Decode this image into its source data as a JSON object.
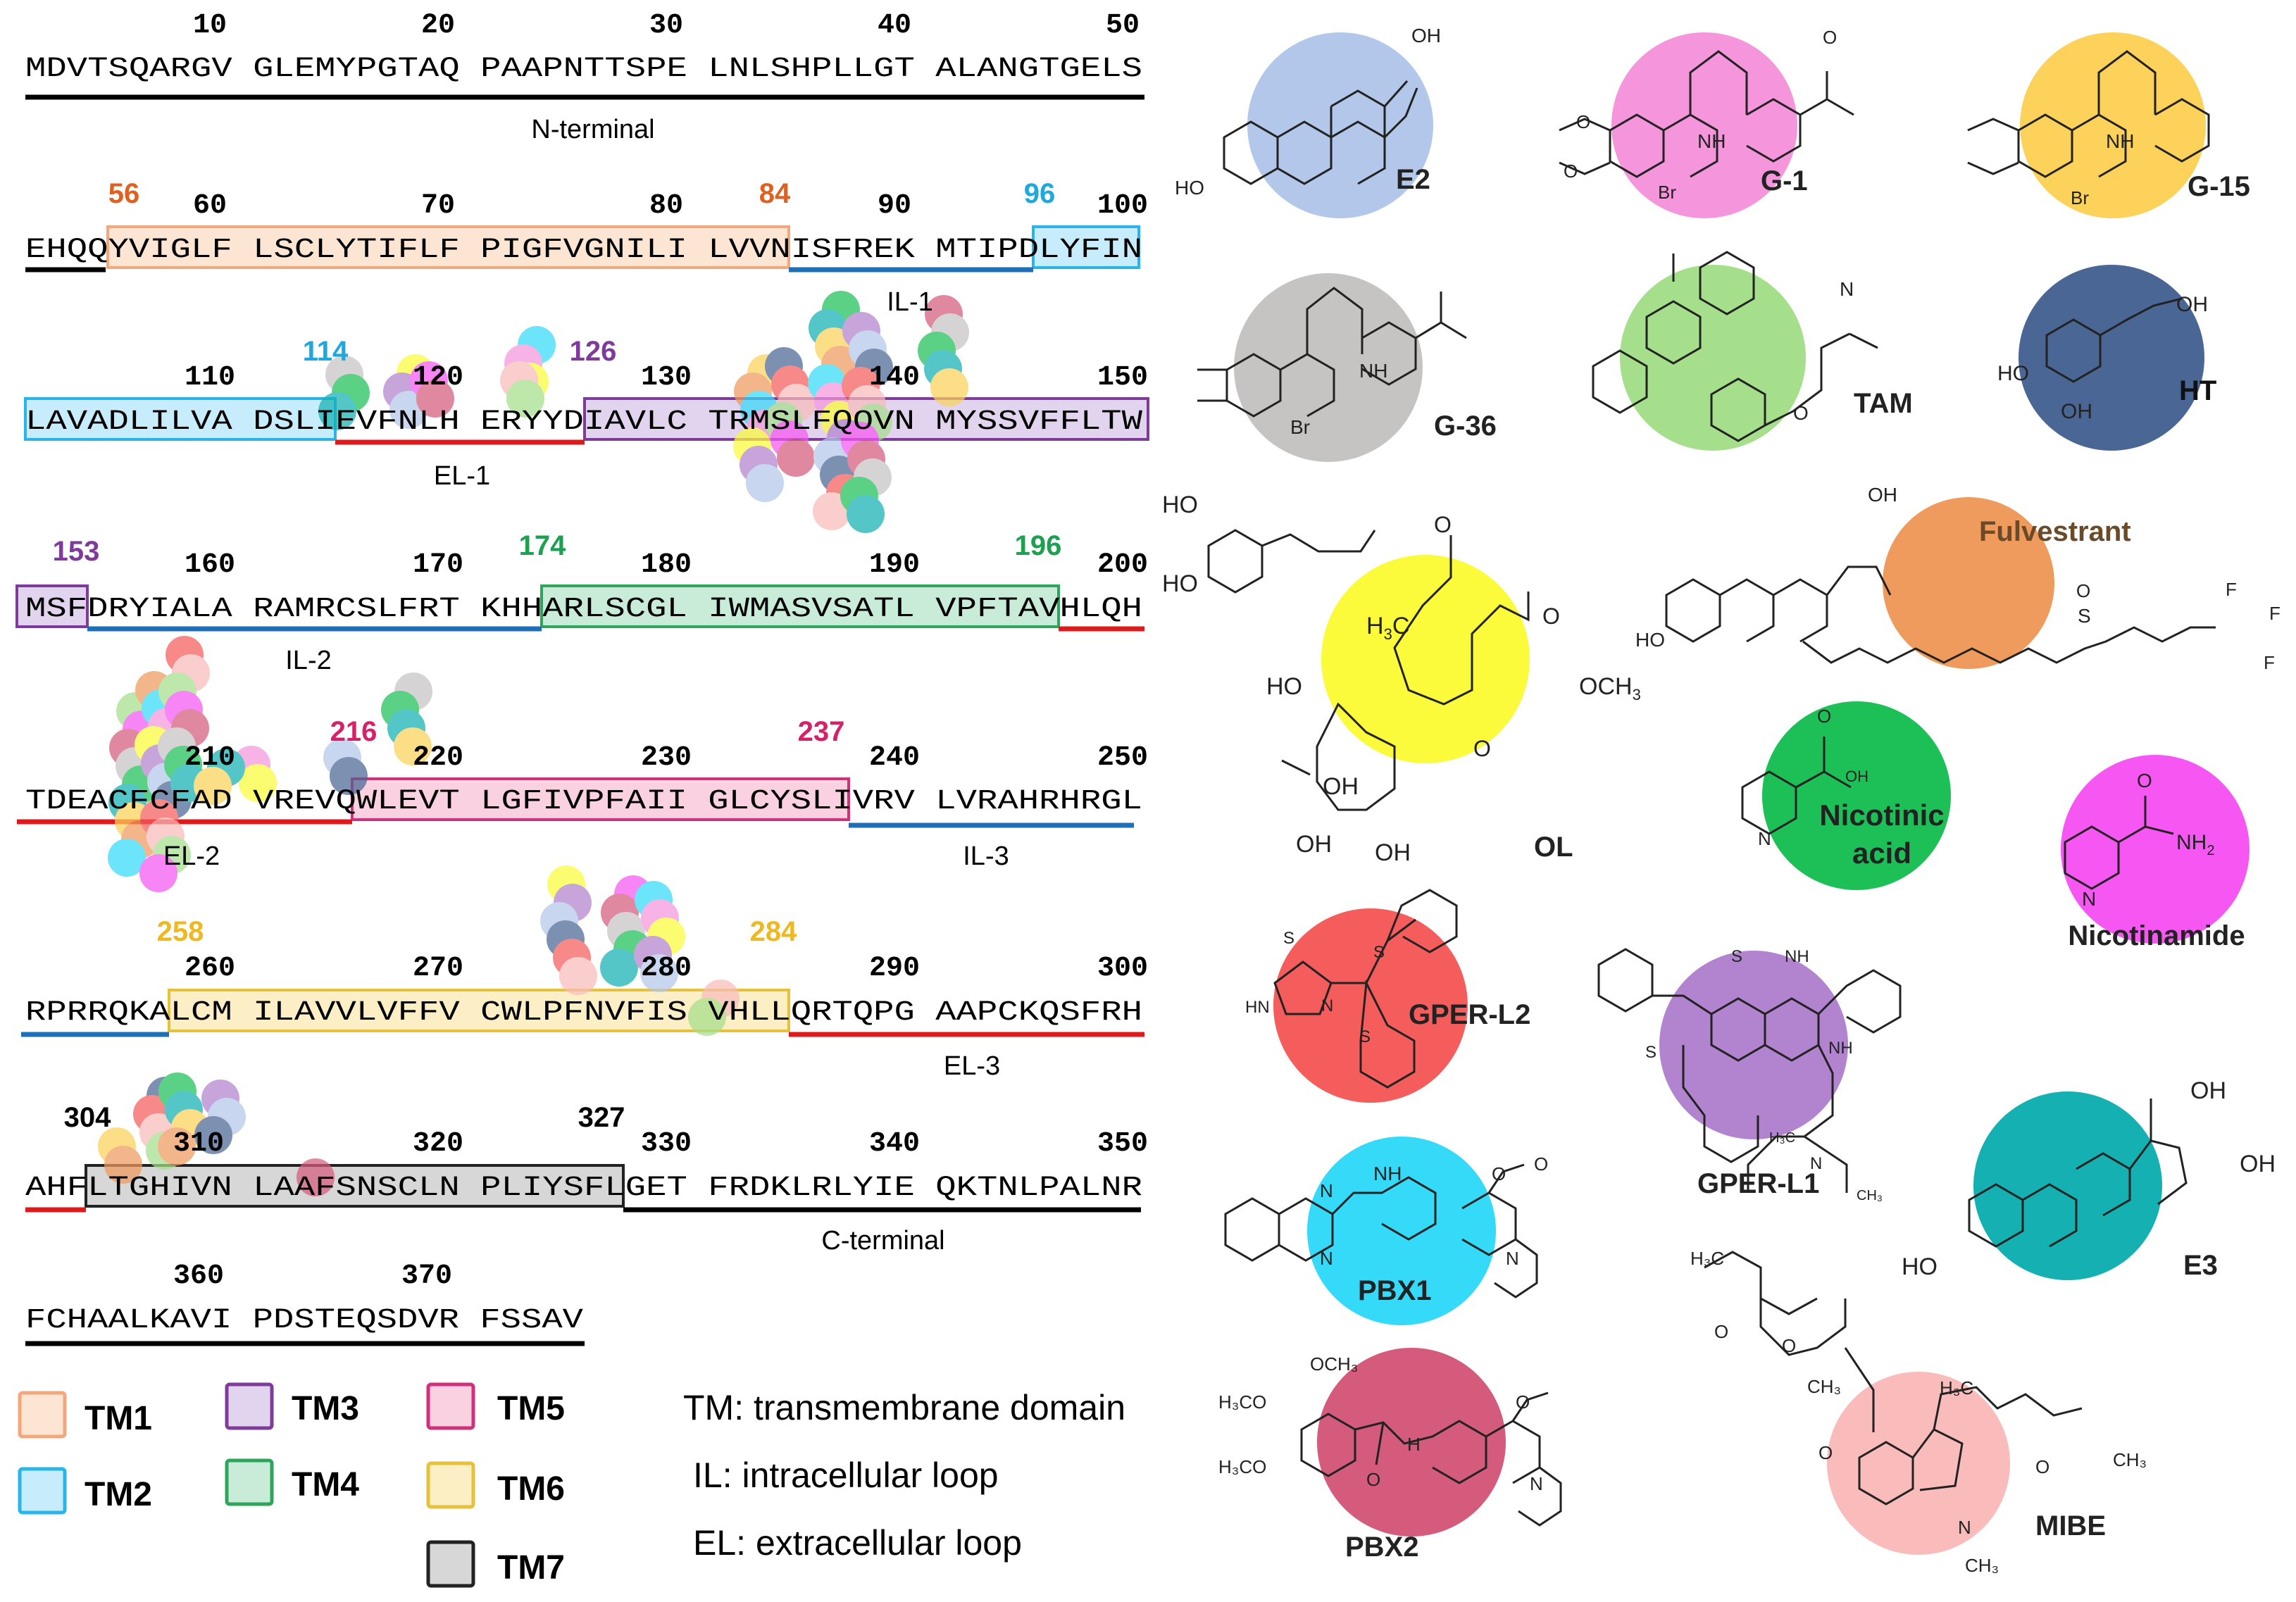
{
  "sequence_rows": [
    {
      "numbers": [
        "10",
        "20",
        "30",
        "40",
        "50"
      ],
      "text": "MDVTSQARGV GLEMYPGTAQ PAAPNTTSPE LNLSHPLLGT ALANGTGELS"
    },
    {
      "numbers": [
        "60",
        "70",
        "80",
        "90",
        "100"
      ],
      "text": "EHQQYVIGLF LSCLYTIFLF PIGFVGNILI LVVNISFREK MTIPDLYFIN"
    },
    {
      "numbers": [
        "110",
        "120",
        "130",
        "140",
        "150"
      ],
      "text": "LAVADLILVA DSLIEVFNLH ERYYDIAVLC TRMSLFQOVN MYSSVFFLTW"
    },
    {
      "numbers": [
        "160",
        "170",
        "180",
        "190",
        "200"
      ],
      "text": "MSFDRYIALA RAMRCSLFRT KHHARLSCGL IWMASVSATL VPFTAVHLQH"
    },
    {
      "numbers": [
        "210",
        "220",
        "230",
        "240",
        "250"
      ],
      "text": "TDEACFCFAD VREVQWLEVT LGFIVPFAII GLCYSLIVRV LVRAHRHRGL"
    },
    {
      "numbers": [
        "260",
        "270",
        "280",
        "290",
        "300"
      ],
      "text": "RPRRQKALCM ILAVVLVFFV CWLPFNVFIS VHLLQRTQPG AAPCKQSFRH"
    },
    {
      "numbers": [
        "320",
        "330",
        "340",
        "350"
      ],
      "text": "AHFLTGHIVN LAAFSNSCLN PLIYSFLGET FRDKLRLYIE QKTNLPALNR",
      "num_310": "310"
    },
    {
      "numbers": [
        "360",
        "370"
      ],
      "text": "FCHAALKAVI PDSTEQSDVR FSSAV"
    }
  ],
  "region_labels": {
    "n_terminal": "N-terminal",
    "il1": "IL-1",
    "el1": "EL-1",
    "il2": "IL-2",
    "el2": "EL-2",
    "il3": "IL-3",
    "el3": "EL-3",
    "c_terminal": "C-terminal"
  },
  "boundary_numbers": {
    "b56": "56",
    "b84": "84",
    "b96": "96",
    "b114": "114",
    "b126": "126",
    "b153": "153",
    "b174": "174",
    "b196": "196",
    "b216": "216",
    "b237": "237",
    "b258": "258",
    "b284": "284",
    "b304": "304",
    "b327": "327"
  },
  "legend": {
    "tm1": "TM1",
    "tm2": "TM2",
    "tm3": "TM3",
    "tm4": "TM4",
    "tm5": "TM5",
    "tm6": "TM6",
    "tm7": "TM7",
    "def_tm": "TM: transmembrane domain",
    "def_il": "IL: intracellular loop",
    "def_el": "EL: extracellular loop"
  },
  "ligands": [
    {
      "key": "E2",
      "label": "E2",
      "color": "#b3c7ea"
    },
    {
      "key": "G1",
      "label": "G-1",
      "color": "#f596dd"
    },
    {
      "key": "G15",
      "label": "G-15",
      "color": "#fcd25a"
    },
    {
      "key": "G36",
      "label": "G-36",
      "color": "#c6c3c3"
    },
    {
      "key": "TAM",
      "label": "TAM",
      "color": "#a6df8b"
    },
    {
      "key": "HT",
      "label": "HT",
      "color": "#4a6694"
    },
    {
      "key": "OL",
      "label": "OL",
      "color": "#fbfb3b"
    },
    {
      "key": "FUL",
      "label": "Fulvestrant",
      "color": "#ef9b5e"
    },
    {
      "key": "NA",
      "label": "Nicotinic acid",
      "color": "#1cc057"
    },
    {
      "key": "NAM",
      "label": "Nicotinamide",
      "color": "#f657f2"
    },
    {
      "key": "L2",
      "label": "GPER-L2",
      "color": "#f55d5d"
    },
    {
      "key": "L1",
      "label": "GPER-L1",
      "color": "#b283ce"
    },
    {
      "key": "PBX1",
      "label": "PBX1",
      "color": "#34daf8"
    },
    {
      "key": "E3",
      "label": "E3",
      "color": "#15b1b2"
    },
    {
      "key": "PBX2",
      "label": "PBX2",
      "color": "#d55b7c"
    },
    {
      "key": "MIBE",
      "label": "MIBE",
      "color": "#f9bcbb"
    }
  ],
  "atoms": {
    "oh": "OH",
    "ho": "HO",
    "h": "H",
    "nh": "NH",
    "br": "Br",
    "o": "O",
    "n": "N",
    "s": "S",
    "f": "F",
    "hn": "HN",
    "nh2": "NH",
    "two": "2",
    "h3c": "H",
    "three": "3",
    "och3": "OCH",
    "ch3": "CH",
    "oh_ring": "OH",
    "h3co": "H₃CO",
    "och3b": "OCH₃",
    "ch3b": "CH₃",
    "h3cb": "H₃C"
  },
  "colors": {
    "tm1_fill": "#fde5d4",
    "tm1_edge": "#f2a77d",
    "tm2_fill": "#c7ecfb",
    "tm2_edge": "#2ab5ea",
    "tm3_fill": "#e2d4ee",
    "tm3_edge": "#7e3b99",
    "tm4_fill": "#c8ecd8",
    "tm4_edge": "#2fa55c",
    "tm5_fill": "#f9d1e1",
    "tm5_edge": "#d1307a",
    "tm6_fill": "#fcefc6",
    "tm6_edge": "#e5c23a",
    "tm7_fill": "#d7d7d7",
    "tm7_edge": "#222222",
    "el_line": "#e0191b",
    "il_line": "#1e6fb7",
    "term_line": "#000000",
    "num_orange": "#e06020",
    "num_blue": "#1ea8e0",
    "num_purple": "#7e3b99",
    "num_green": "#1ea050",
    "num_pink": "#d8206a",
    "num_gold": "#f0b820"
  }
}
